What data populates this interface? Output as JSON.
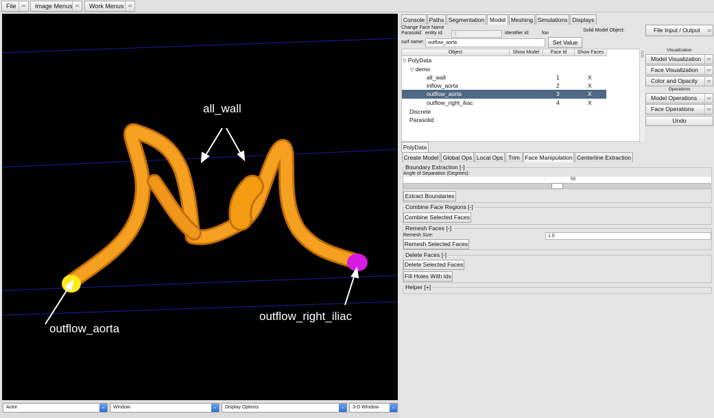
{
  "menubar": {
    "file": "File",
    "image_menus": "Image Menus",
    "work_menus": "Work Menus"
  },
  "viewport": {
    "labels": {
      "all_wall": "all_wall",
      "outflow_aorta": "outflow_aorta",
      "outflow_right_iliac": "outflow_right_iliac"
    },
    "vessel_color": "#f39c12",
    "aorta_cap_color": "#ffe818",
    "iliac_cap_color": "#d51ce0",
    "grid_line_color": "#1e1ea0"
  },
  "bottom": {
    "actor": "Actor",
    "window": "Window",
    "display_options": "Display Options",
    "view": "3-D Window"
  },
  "tabs": {
    "console": "Console",
    "paths": "Paths",
    "segmentation": "Segmentation",
    "model": "Model",
    "meshing": "Meshing",
    "simulations": "Simulations",
    "displays": "Displays"
  },
  "face": {
    "change_face_name": "Change Face Name",
    "parasolid": "Parasolid",
    "entity_id": "entity id:",
    "entity_value": "1",
    "identifier_id": "identifier id:",
    "identifier_value": "foo",
    "solid_model_object": "Solid Model Object:",
    "surf_name_label": "surf name:",
    "surf_name_value": "outflow_aorta",
    "set_value": "Set Value"
  },
  "tree": {
    "headers": {
      "object": "Object",
      "show_model": "Show Model",
      "face_id": "Face Id",
      "show_faces": "Show Faces"
    },
    "polydata": "PolyData",
    "demo": "demo",
    "faces": [
      {
        "name": "all_wall",
        "id": "1",
        "show": "X"
      },
      {
        "name": "inflow_aorta",
        "id": "2",
        "show": "X"
      },
      {
        "name": "outflow_aorta",
        "id": "3",
        "show": "X"
      },
      {
        "name": "outflow_right_iliac",
        "id": "4",
        "show": "X"
      }
    ],
    "discrete": "Discrete",
    "parasolid": "Parasolid"
  },
  "right": {
    "file_io": "File Input / Output",
    "visualization": "Visualization",
    "model_vis": "Model Visualization",
    "face_vis": "Face Visualization",
    "color_opacity": "Color and Opacity",
    "operations": "Operations",
    "model_ops": "Model Operations",
    "face_ops": "Face Operations",
    "undo": "Undo"
  },
  "polydata_tab": "PolyData",
  "subtabs": {
    "create_model": "Create Model",
    "global_ops": "Global Ops",
    "local_ops": "Local Ops",
    "trim": "Trim",
    "face_manipulation": "Face Manipulation",
    "centerline_extraction": "Centerline Extraction"
  },
  "boundary": {
    "title": "Boundary Extraction [-]",
    "angle_label": "Angle of Separation (Degrees):",
    "angle_value": "50",
    "angle_fraction": 0.5,
    "extract": "Extract Boundaries"
  },
  "combine": {
    "title": "Combine Face Regions [-]",
    "button": "Combine Selected Faces"
  },
  "remesh": {
    "title": "Remesh Faces [-]",
    "size_label": "Remesh Size:",
    "size_value": "1.0",
    "button": "Remesh Selected Faces"
  },
  "delete": {
    "title": "Delete Faces [-]",
    "delete_button": "Delete Selected Faces",
    "fill_button": "Fill Holes With Ids"
  },
  "helper": {
    "title": "Helper [+]"
  }
}
